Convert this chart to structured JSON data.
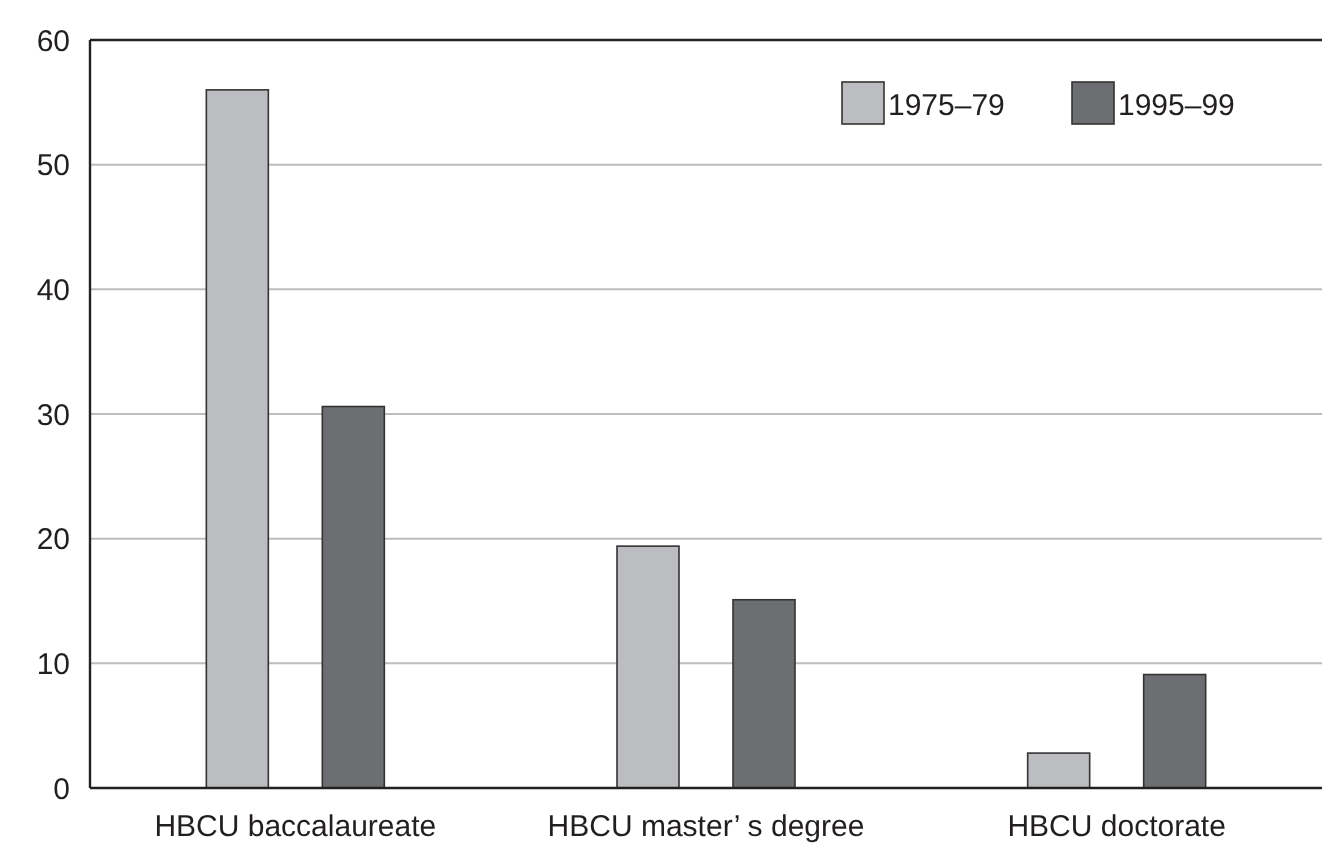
{
  "chart_data": {
    "type": "bar",
    "categories": [
      "HBCU baccalaureate",
      "HBCU master’ s degree",
      "HBCU doctorate"
    ],
    "series": [
      {
        "name": "1975–79",
        "color": "#bcbdc0",
        "values": [
          56,
          19.4,
          2.8
        ]
      },
      {
        "name": "1995–99",
        "color": "#6d6e71",
        "values": [
          30.6,
          15.1,
          9.1
        ]
      }
    ],
    "ylim": [
      0,
      60
    ],
    "yticks": [
      0,
      10,
      20,
      30,
      40,
      50,
      60
    ],
    "grid": "y",
    "legend": "top right"
  }
}
